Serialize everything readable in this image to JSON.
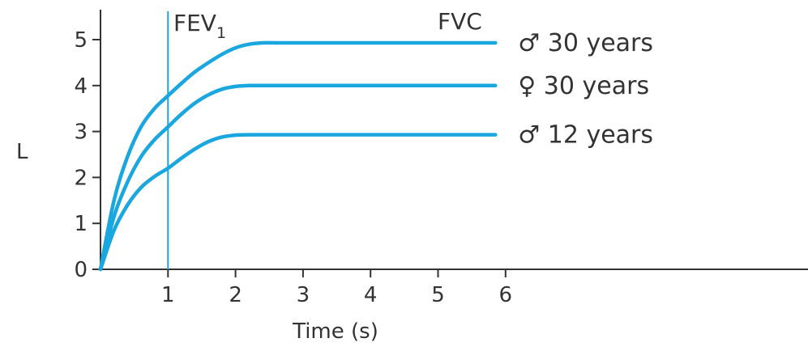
{
  "chart_data": {
    "type": "line",
    "title": "",
    "xlabel": "Time (s)",
    "ylabel": "L",
    "xlim": [
      0,
      6
    ],
    "ylim": [
      0,
      5
    ],
    "x_ticks": [
      "1",
      "2",
      "3",
      "4",
      "5",
      "6"
    ],
    "y_ticks": [
      "0",
      "1",
      "2",
      "3",
      "4",
      "5"
    ],
    "grid": false,
    "line_color": "#1aa7e0",
    "axis_color": "#333333",
    "annotations": {
      "fev1_base": "FEV",
      "fev1_sub": "1",
      "fev1_x": 1,
      "fvc": "FVC"
    },
    "series": [
      {
        "name": "♂ 30 years",
        "x": [
          0,
          0.2,
          0.4,
          0.6,
          0.8,
          1.0,
          1.2,
          1.4,
          1.6,
          1.8,
          2.0,
          2.2,
          2.4,
          2.6,
          3.0,
          4.0,
          5.0,
          5.85
        ],
        "values": [
          0,
          1.5,
          2.45,
          3.1,
          3.5,
          3.78,
          4.05,
          4.3,
          4.5,
          4.68,
          4.82,
          4.9,
          4.93,
          4.93,
          4.93,
          4.93,
          4.93,
          4.93
        ]
      },
      {
        "name": "♀ 30 years",
        "x": [
          0,
          0.2,
          0.4,
          0.6,
          0.8,
          1.0,
          1.2,
          1.4,
          1.6,
          1.8,
          2.0,
          2.2,
          2.4,
          3.0,
          4.0,
          5.0,
          5.85
        ],
        "values": [
          0,
          1.15,
          1.9,
          2.45,
          2.82,
          3.1,
          3.38,
          3.62,
          3.8,
          3.92,
          3.98,
          4.0,
          4.0,
          4.0,
          4.0,
          4.0,
          4.0
        ]
      },
      {
        "name": "♂ 12 years",
        "x": [
          0,
          0.2,
          0.4,
          0.6,
          0.8,
          1.0,
          1.2,
          1.4,
          1.6,
          1.8,
          2.0,
          2.2,
          3.0,
          4.0,
          5.0,
          5.85
        ],
        "values": [
          0,
          0.85,
          1.4,
          1.78,
          2.02,
          2.2,
          2.42,
          2.62,
          2.78,
          2.88,
          2.92,
          2.93,
          2.93,
          2.93,
          2.93,
          2.93
        ]
      }
    ]
  }
}
